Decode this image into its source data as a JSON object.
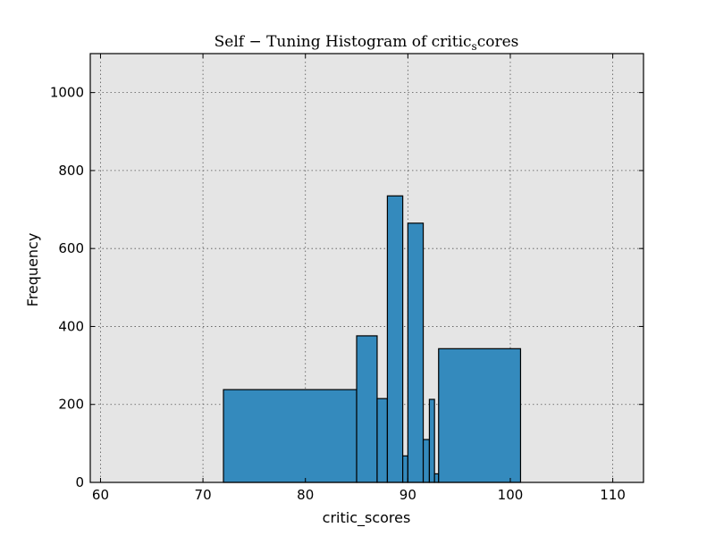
{
  "chart_data": {
    "type": "bar",
    "title_main": "Self − Tuning Histogram of critic",
    "title_sub": "s",
    "title_rest": "cores",
    "xlabel": "critic_scores",
    "ylabel": "Frequency",
    "xlim": [
      59,
      113
    ],
    "ylim": [
      0,
      1100
    ],
    "xticks": [
      60,
      70,
      80,
      90,
      100,
      110
    ],
    "yticks": [
      0,
      200,
      400,
      600,
      800,
      1000
    ],
    "grid": true,
    "bar_color": "#348abd",
    "background_color": "#e5e5e5",
    "bins": [
      {
        "x0": 72,
        "x1": 85,
        "value": 238
      },
      {
        "x0": 85,
        "x1": 87,
        "value": 376
      },
      {
        "x0": 87,
        "x1": 88,
        "value": 215
      },
      {
        "x0": 88,
        "x1": 89.5,
        "value": 735
      },
      {
        "x0": 89.5,
        "x1": 90,
        "value": 68
      },
      {
        "x0": 90,
        "x1": 91.5,
        "value": 665
      },
      {
        "x0": 91.5,
        "x1": 92.1,
        "value": 110
      },
      {
        "x0": 92.1,
        "x1": 92.6,
        "value": 213
      },
      {
        "x0": 92.6,
        "x1": 93,
        "value": 22
      },
      {
        "x0": 93,
        "x1": 101,
        "value": 343
      }
    ]
  }
}
